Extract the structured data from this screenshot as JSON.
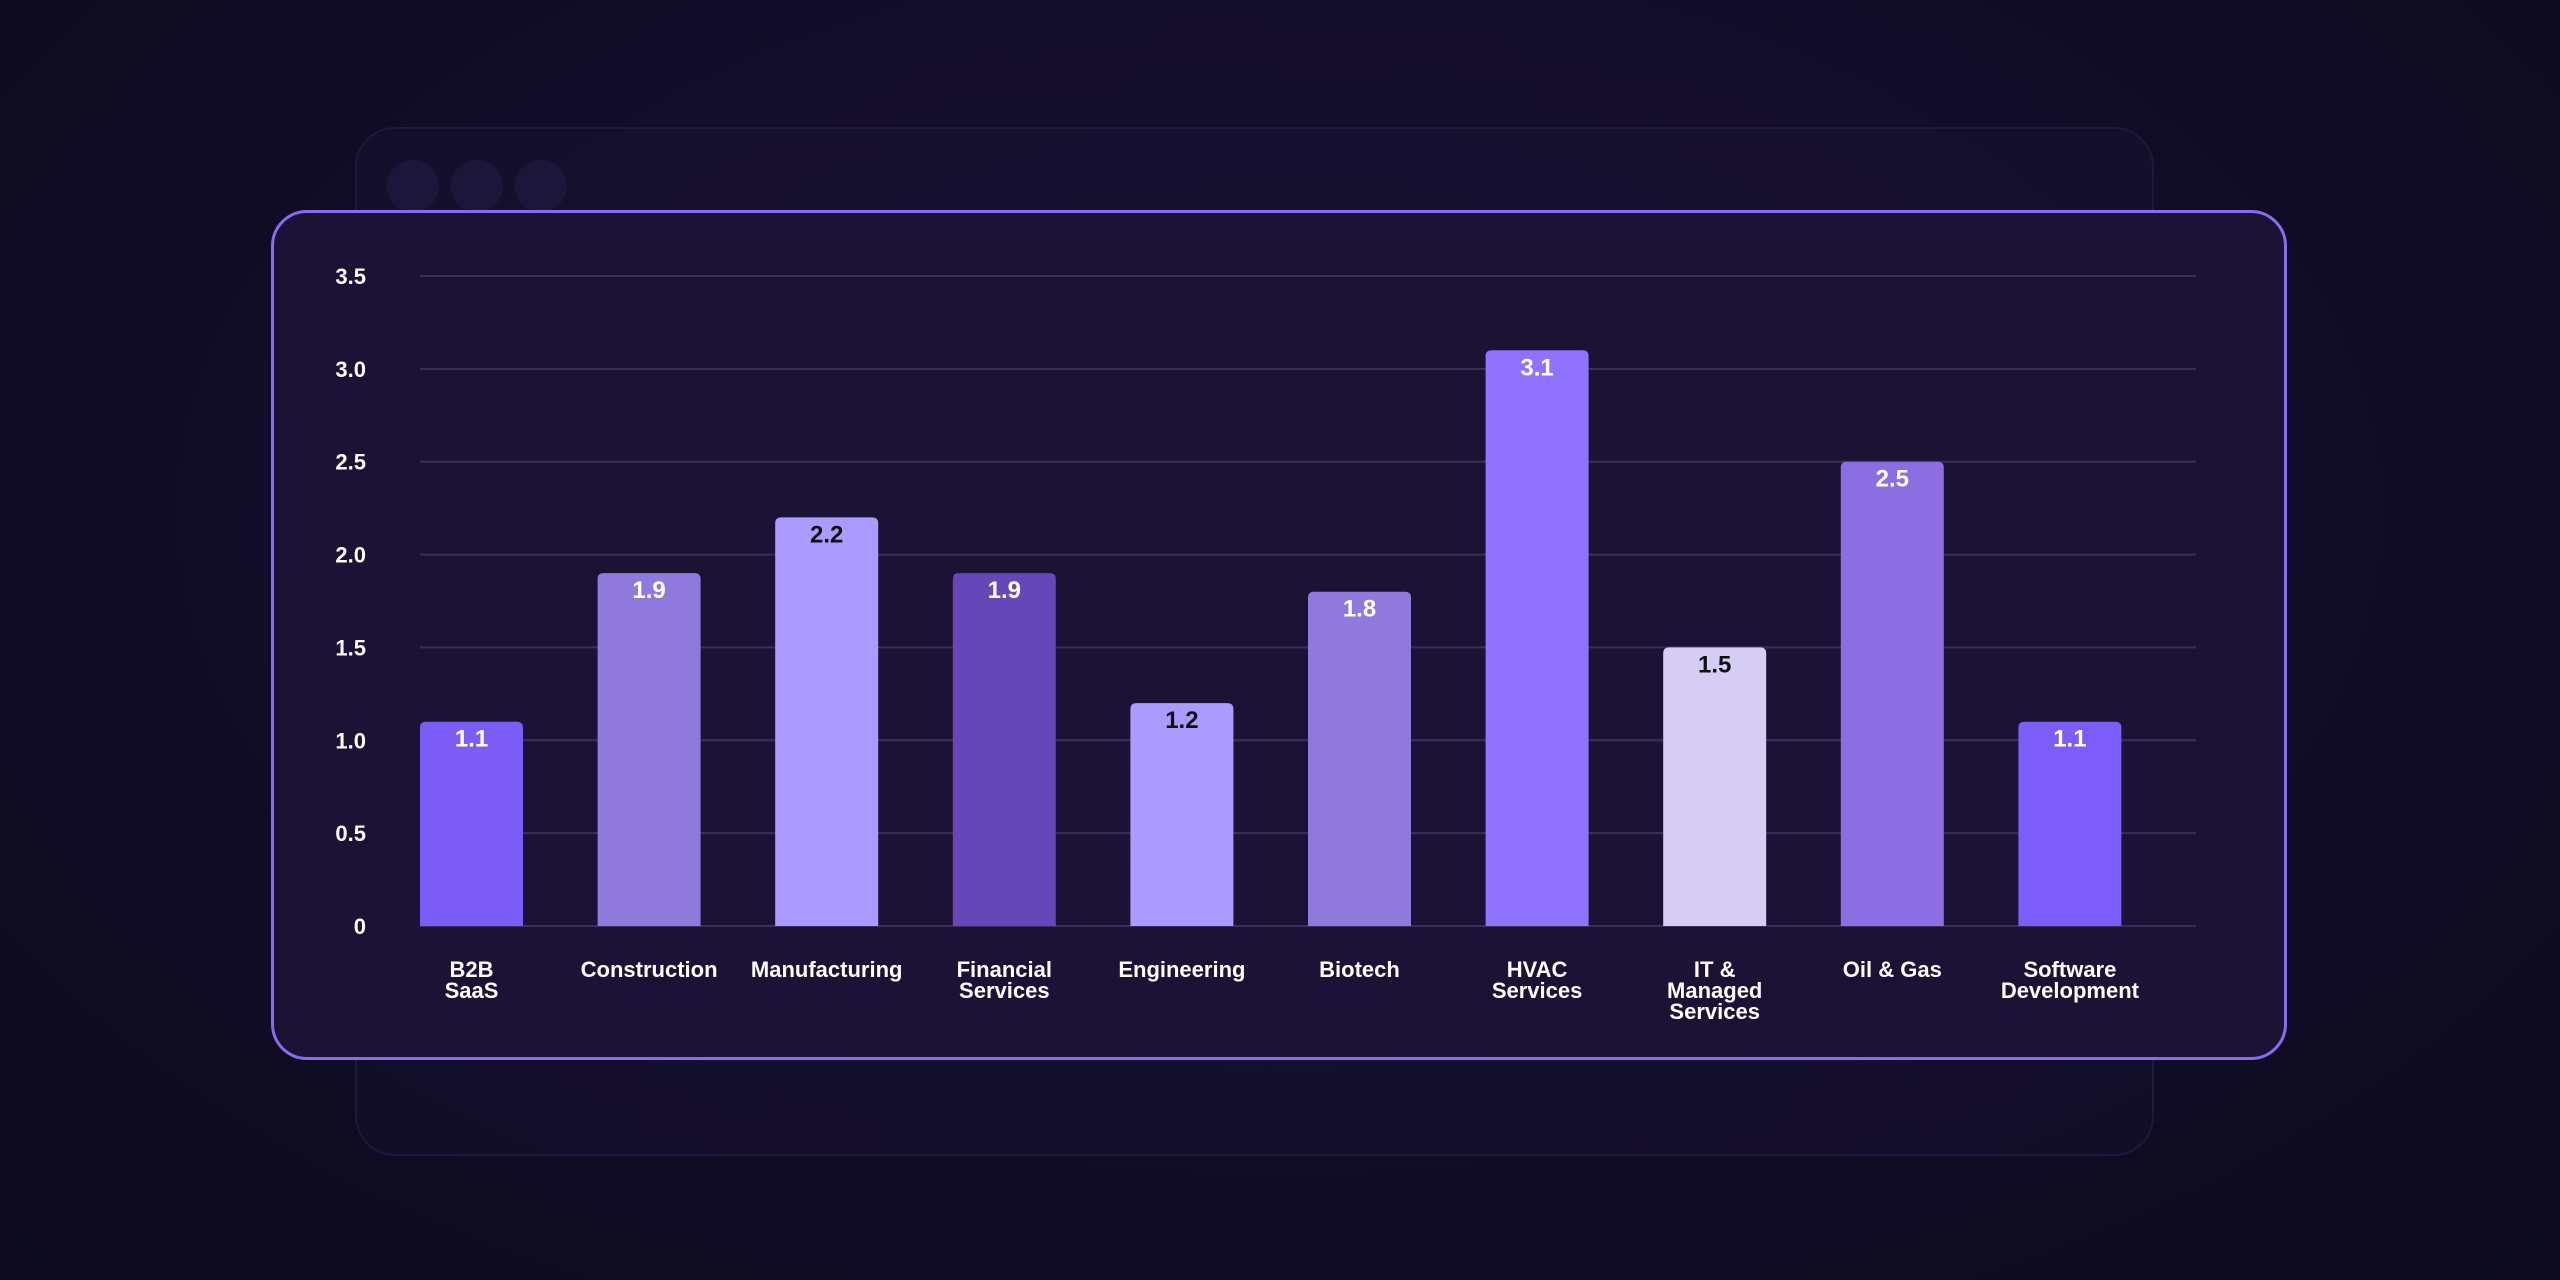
{
  "colors": {
    "background": "#120d28",
    "card_bg": "#1c1236",
    "card_border": "#8a6af0",
    "grid": "#3a2f5c",
    "axis_text": "#ffffff"
  },
  "chart_data": {
    "type": "bar",
    "categories": [
      "B2B SaaS",
      "Construction",
      "Manufacturing",
      "Financial Services",
      "Engineering",
      "Biotech",
      "HVAC Services",
      "IT & Managed Services",
      "Oil & Gas",
      "Software Development"
    ],
    "category_label_lines": [
      [
        "B2B",
        "SaaS"
      ],
      [
        "Construction"
      ],
      [
        "Manufacturing"
      ],
      [
        "Financial",
        "Services"
      ],
      [
        "Engineering"
      ],
      [
        "Biotech"
      ],
      [
        "HVAC",
        "Services"
      ],
      [
        "IT &",
        "Managed",
        "Services"
      ],
      [
        "Oil & Gas"
      ],
      [
        "Software",
        "Development"
      ]
    ],
    "values": [
      1.1,
      1.9,
      2.2,
      1.9,
      1.2,
      1.8,
      3.1,
      1.5,
      2.5,
      1.1
    ],
    "value_labels": [
      "1.1",
      "1.9",
      "2.2",
      "1.9",
      "1.2",
      "1.8",
      "3.1",
      "1.5",
      "2.5",
      "1.1"
    ],
    "bar_colors": [
      "#7b5cf6",
      "#9079dd",
      "#ab9bff",
      "#6547b8",
      "#ab9bff",
      "#9079dd",
      "#8f73ff",
      "#d6cdf4",
      "#8a6ee2",
      "#7c5cfa"
    ],
    "label_colors": [
      "#ffffff",
      "#ffffff",
      "#111111",
      "#ffffff",
      "#111111",
      "#ffffff",
      "#ffffff",
      "#111111",
      "#ffffff",
      "#ffffff"
    ],
    "yticks": [
      "0",
      "0.5",
      "1.0",
      "1.5",
      "2.0",
      "2.5",
      "3.0",
      "3.5"
    ],
    "ylim": [
      0,
      3.5
    ],
    "grid": true,
    "title": "",
    "xlabel": "",
    "ylabel": ""
  }
}
